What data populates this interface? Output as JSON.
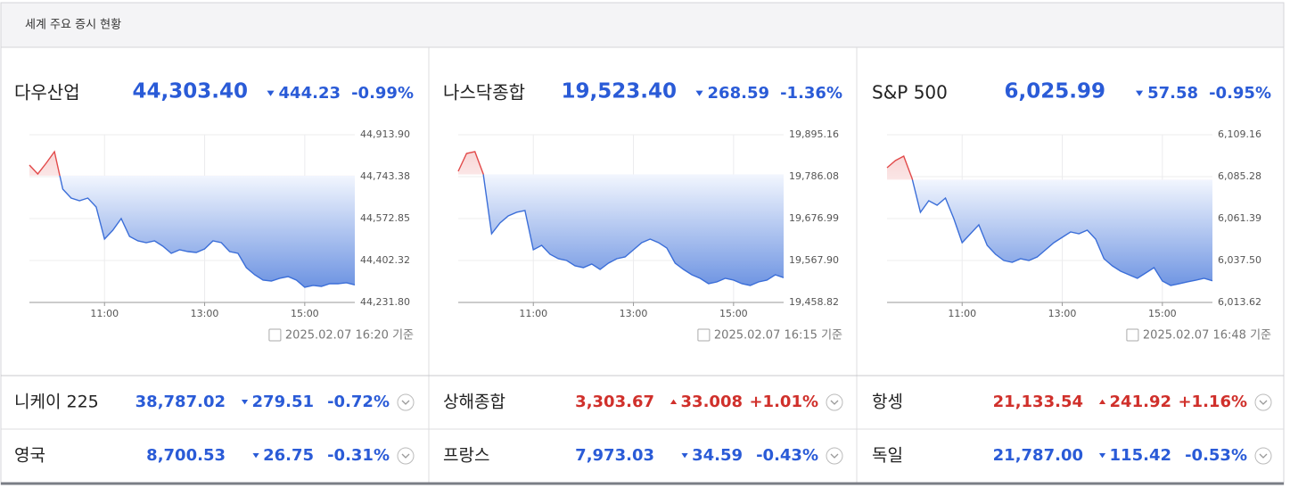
{
  "header": {
    "title": "세계 주요 증시 현황"
  },
  "panels": [
    {
      "name": "다우산업",
      "price": "44,303.40",
      "change": "444.23",
      "change_pct": "-0.99%",
      "direction": "down",
      "timestamp": "2025.02.07 16:20 기준"
    },
    {
      "name": "나스닥종합",
      "price": "19,523.40",
      "change": "268.59",
      "change_pct": "-1.36%",
      "direction": "down",
      "timestamp": "2025.02.07 16:15 기준"
    },
    {
      "name": "S&P 500",
      "price": "6,025.99",
      "change": "57.58",
      "change_pct": "-0.95%",
      "direction": "down",
      "timestamp": "2025.02.07 16:48 기준"
    }
  ],
  "chart_data": [
    {
      "type": "line",
      "x": [
        "09:30",
        "09:40",
        "09:50",
        "10:00",
        "10:10",
        "10:20",
        "10:30",
        "10:40",
        "10:50",
        "11:00",
        "11:10",
        "11:20",
        "11:30",
        "11:40",
        "11:50",
        "12:00",
        "12:10",
        "12:20",
        "12:30",
        "12:40",
        "12:50",
        "13:00",
        "13:10",
        "13:20",
        "13:30",
        "13:40",
        "13:50",
        "14:00",
        "14:10",
        "14:20",
        "14:30",
        "14:40",
        "14:50",
        "15:00",
        "15:10",
        "15:20",
        "15:30",
        "15:40",
        "15:50",
        "16:00"
      ],
      "values": [
        44790.5,
        44754.3,
        44797.8,
        44845.0,
        44692.6,
        44656.3,
        44645.4,
        44656.3,
        44620.0,
        44489.4,
        44525.7,
        44572.9,
        44500.3,
        44482.2,
        44474.9,
        44482.2,
        44460.4,
        44431.4,
        44445.9,
        44438.6,
        44435.0,
        44449.5,
        44482.2,
        44474.9,
        44438.6,
        44431.4,
        44373.3,
        44344.3,
        44322.5,
        44318.9,
        44329.8,
        44337.0,
        44322.5,
        44293.5,
        44300.8,
        44297.1,
        44308.0,
        44308.0,
        44311.7,
        44303.4
      ],
      "xlim": [
        "09:30",
        "16:00"
      ],
      "xticks": [
        "11:00",
        "13:00",
        "15:00"
      ],
      "ylim": [
        44231.8,
        44913.9
      ],
      "yticks": [
        {
          "value": 44231.8,
          "label": "44,231.80"
        },
        {
          "value": 44402.32,
          "label": "44,402.32"
        },
        {
          "value": 44572.85,
          "label": "44,572.85"
        },
        {
          "value": 44743.38,
          "label": "44,743.38"
        },
        {
          "value": 44913.9,
          "label": "44,913.90"
        }
      ],
      "grid": true
    },
    {
      "type": "line",
      "x": [
        "09:30",
        "09:40",
        "09:50",
        "10:00",
        "10:10",
        "10:20",
        "10:30",
        "10:40",
        "10:50",
        "11:00",
        "11:10",
        "11:20",
        "11:30",
        "11:40",
        "11:50",
        "12:00",
        "12:10",
        "12:20",
        "12:30",
        "12:40",
        "12:50",
        "13:00",
        "13:10",
        "13:20",
        "13:30",
        "13:40",
        "13:50",
        "14:00",
        "14:10",
        "14:20",
        "14:30",
        "14:40",
        "14:50",
        "15:00",
        "15:10",
        "15:20",
        "15:30",
        "15:40",
        "15:50",
        "16:00"
      ],
      "values": [
        19800.0,
        19846.4,
        19851.1,
        19793.1,
        19637.5,
        19665.4,
        19684.0,
        19693.3,
        19697.9,
        19595.8,
        19607.4,
        19584.2,
        19572.6,
        19567.9,
        19554.0,
        19549.4,
        19558.7,
        19544.7,
        19561.0,
        19572.6,
        19577.2,
        19595.8,
        19614.4,
        19623.6,
        19614.4,
        19600.4,
        19561.0,
        19544.7,
        19530.8,
        19521.5,
        19507.6,
        19512.2,
        19521.5,
        19516.9,
        19507.6,
        19503.0,
        19512.2,
        19516.9,
        19530.8,
        19523.4
      ],
      "xlim": [
        "09:30",
        "16:00"
      ],
      "xticks": [
        "11:00",
        "13:00",
        "15:00"
      ],
      "ylim": [
        19458.82,
        19895.16
      ],
      "yticks": [
        {
          "value": 19458.82,
          "label": "19,458.82"
        },
        {
          "value": 19567.9,
          "label": "19,567.90"
        },
        {
          "value": 19676.99,
          "label": "19,676.99"
        },
        {
          "value": 19786.08,
          "label": "19,786.08"
        },
        {
          "value": 19895.16,
          "label": "19,895.16"
        }
      ],
      "grid": true
    },
    {
      "type": "line",
      "x": [
        "09:30",
        "09:40",
        "09:50",
        "10:00",
        "10:10",
        "10:20",
        "10:30",
        "10:40",
        "10:50",
        "11:00",
        "11:10",
        "11:20",
        "11:30",
        "11:40",
        "11:50",
        "12:00",
        "12:10",
        "12:20",
        "12:30",
        "12:40",
        "12:50",
        "13:00",
        "13:10",
        "13:20",
        "13:30",
        "13:40",
        "13:50",
        "14:00",
        "14:10",
        "14:20",
        "14:30",
        "14:40",
        "14:50",
        "15:00",
        "15:10",
        "15:20",
        "15:30",
        "15:40",
        "15:50",
        "16:00"
      ],
      "values": [
        6090.36,
        6094.42,
        6096.96,
        6084.26,
        6064.95,
        6071.55,
        6069.01,
        6073.08,
        6061.39,
        6047.67,
        6052.75,
        6057.83,
        6046.14,
        6041.06,
        6037.5,
        6036.49,
        6038.52,
        6037.5,
        6039.54,
        6043.6,
        6047.67,
        6050.72,
        6053.77,
        6052.75,
        6054.78,
        6049.7,
        6038.52,
        6034.45,
        6031.41,
        6029.37,
        6027.34,
        6030.39,
        6033.44,
        6025.82,
        6023.27,
        6024.29,
        6025.31,
        6026.32,
        6027.34,
        6025.99
      ],
      "xlim": [
        "09:30",
        "16:00"
      ],
      "xticks": [
        "11:00",
        "13:00",
        "15:00"
      ],
      "ylim": [
        6013.62,
        6109.16
      ],
      "yticks": [
        {
          "value": 6013.62,
          "label": "6,013.62"
        },
        {
          "value": 6037.5,
          "label": "6,037.50"
        },
        {
          "value": 6061.39,
          "label": "6,061.39"
        },
        {
          "value": 6085.28,
          "label": "6,085.28"
        },
        {
          "value": 6109.16,
          "label": "6,109.16"
        }
      ],
      "grid": true
    }
  ],
  "rows": [
    [
      {
        "name": "니케이 225",
        "price": "38,787.02",
        "change": "279.51",
        "change_pct": "-0.72%",
        "direction": "down"
      },
      {
        "name": "상해종합",
        "price": "3,303.67",
        "change": "33.008",
        "change_pct": "+1.01%",
        "direction": "up"
      },
      {
        "name": "항셍",
        "price": "21,133.54",
        "change": "241.92",
        "change_pct": "+1.16%",
        "direction": "up"
      }
    ],
    [
      {
        "name": "영국",
        "price": "8,700.53",
        "change": "26.75",
        "change_pct": "-0.31%",
        "direction": "down"
      },
      {
        "name": "프랑스",
        "price": "7,973.03",
        "change": "34.59",
        "change_pct": "-0.43%",
        "direction": "down"
      },
      {
        "name": "독일",
        "price": "21,787.00",
        "change": "115.42",
        "change_pct": "-0.53%",
        "direction": "down"
      }
    ]
  ]
}
